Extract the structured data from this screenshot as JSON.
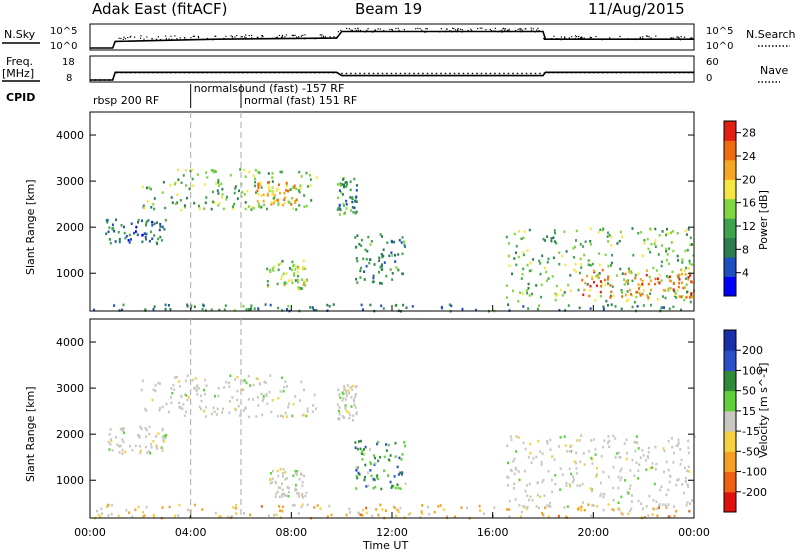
{
  "header": {
    "title_left": "Adak East (fitACF)",
    "title_center": "Beam 19",
    "title_right": "11/Aug/2015"
  },
  "chart_data": [
    {
      "type": "line",
      "name": "nsky-nsearch",
      "left_label": "N.Sky",
      "right_label": "N.Search",
      "left_ticks": [
        "10^5",
        "10^0"
      ],
      "right_ticks": [
        "10^5",
        "10^0"
      ],
      "x_hours": [
        0,
        0.9,
        1.0,
        5.0,
        9.8,
        10.0,
        18.0,
        18.1,
        24
      ],
      "nsky_level": [
        0.0,
        0.0,
        0.3,
        0.4,
        0.45,
        0.75,
        0.75,
        0.4,
        0.4
      ],
      "nsearch_style": "dotted"
    },
    {
      "type": "line",
      "name": "freq-nave",
      "left_label": "Freq.",
      "left_unit": "[MHz]",
      "right_label": "Nave",
      "left_ticks": [
        "18",
        "8"
      ],
      "right_ticks": [
        "60",
        "0"
      ],
      "x_hours": [
        0,
        0.9,
        1.0,
        9.8,
        10.0,
        18.0,
        18.1,
        24
      ],
      "freq_mhz": [
        8,
        8,
        11.5,
        11.5,
        10,
        10,
        11.5,
        11.5
      ],
      "nave": [
        0,
        0,
        20,
        20,
        18,
        18,
        20,
        20
      ],
      "nave_style": "dotted"
    },
    {
      "type": "table",
      "name": "cpid",
      "label": "CPID",
      "segments": [
        {
          "start": 0,
          "end": 4.0,
          "text": "rbsp 200 RF"
        },
        {
          "start": 4.0,
          "end": 6.0,
          "text": "normalsound (fast) -157 RF"
        },
        {
          "start": 6.0,
          "end": 24,
          "text": "normal (fast) 151 RF"
        }
      ]
    },
    {
      "type": "heatmap",
      "name": "power",
      "ylabel": "Slant Range [km]",
      "ylim": [
        180,
        4500
      ],
      "y_ticks": [
        1000,
        2000,
        3000,
        4000
      ],
      "colorbar_label": "Power [dB]",
      "colorbar_ticks": [
        4,
        8,
        12,
        16,
        20,
        24,
        28
      ],
      "colorbar_range": [
        0,
        30
      ],
      "colors": [
        "#0000ff",
        "#1f4fbf",
        "#2e7d4f",
        "#3fa34d",
        "#7fd640",
        "#f5e641",
        "#f5a623",
        "#f06a10",
        "#e02010"
      ],
      "regions": [
        {
          "x0": 0.6,
          "x1": 3.0,
          "y0": 1600,
          "y1": 2200,
          "level": 0.25
        },
        {
          "x0": 2.0,
          "x1": 9.0,
          "y0": 2400,
          "y1": 3300,
          "level": 0.45
        },
        {
          "x0": 6.6,
          "x1": 8.2,
          "y0": 2500,
          "y1": 3000,
          "level": 0.7
        },
        {
          "x0": 7.0,
          "x1": 8.6,
          "y0": 650,
          "y1": 1300,
          "level": 0.5
        },
        {
          "x0": 9.8,
          "x1": 10.6,
          "y0": 2300,
          "y1": 3100,
          "level": 0.35
        },
        {
          "x0": 10.5,
          "x1": 12.5,
          "y0": 800,
          "y1": 1900,
          "level": 0.3
        },
        {
          "x0": 16.5,
          "x1": 24.0,
          "y0": 400,
          "y1": 2000,
          "level": 0.45
        },
        {
          "x0": 19.5,
          "x1": 24.0,
          "y0": 500,
          "y1": 1100,
          "level": 0.8
        },
        {
          "x0": 0.0,
          "x1": 24.0,
          "y0": 200,
          "y1": 350,
          "level": 0.3
        }
      ]
    },
    {
      "type": "heatmap",
      "name": "velocity",
      "ylabel": "Slant Range [km]",
      "ylim": [
        180,
        4500
      ],
      "y_ticks": [
        1000,
        2000,
        3000,
        4000
      ],
      "xlabel": "Time UT",
      "x_ticks": [
        "00:00",
        "04:00",
        "08:00",
        "12:00",
        "16:00",
        "20:00",
        "00:00"
      ],
      "colorbar_label": "Velocity [m s^-1]",
      "colorbar_ticks": [
        200,
        100,
        50,
        15,
        -15,
        -50,
        -100,
        -200
      ],
      "colors": [
        "#1a2ea8",
        "#2a4fc8",
        "#2f8a3a",
        "#5fcf3a",
        "#c8c8c0",
        "#f5d040",
        "#f5a020",
        "#f06010",
        "#e01010"
      ],
      "regions": [
        {
          "x0": 0.6,
          "x1": 3.0,
          "y0": 1600,
          "y1": 2200,
          "level": 0.5
        },
        {
          "x0": 2.0,
          "x1": 9.0,
          "y0": 2400,
          "y1": 3300,
          "level": 0.5
        },
        {
          "x0": 7.0,
          "x1": 8.6,
          "y0": 650,
          "y1": 1300,
          "level": 0.5
        },
        {
          "x0": 9.8,
          "x1": 10.6,
          "y0": 2300,
          "y1": 3100,
          "level": 0.5
        },
        {
          "x0": 10.5,
          "x1": 12.5,
          "y0": 800,
          "y1": 1900,
          "level": 0.3
        },
        {
          "x0": 16.5,
          "x1": 24.0,
          "y0": 400,
          "y1": 2000,
          "level": 0.5
        },
        {
          "x0": 0.0,
          "x1": 24.0,
          "y0": 200,
          "y1": 500,
          "level": 0.62
        }
      ]
    }
  ]
}
